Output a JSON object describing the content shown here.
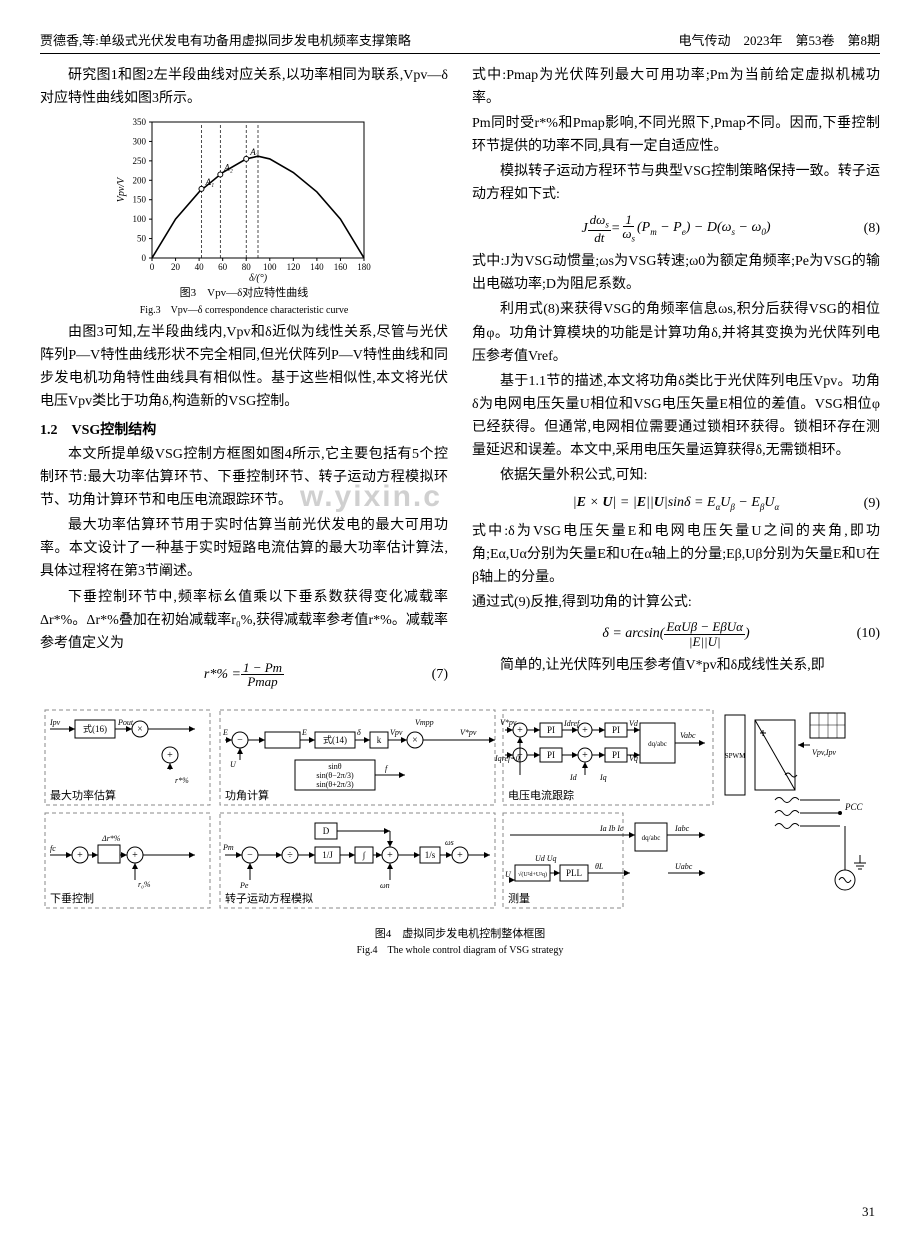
{
  "header": {
    "left": "贾德香,等:单级式光伏发电有功备用虚拟同步发电机频率支撑策略",
    "right": "电气传动　2023年　第53卷　第8期"
  },
  "left_col": {
    "p1": "研究图1和图2左半段曲线对应关系,以功率相同为联系,Vpv—δ对应特性曲线如图3所示。",
    "fig3_cn": "图3　Vpv—δ对应特性曲线",
    "fig3_en": "Fig.3　Vpv—δ correspondence characteristic curve",
    "p2": "由图3可知,左半段曲线内,Vpv和δ近似为线性关系,尽管与光伏阵列P—V特性曲线形状不完全相同,但光伏阵列P—V特性曲线和同步发电机功角特性曲线具有相似性。基于这些相似性,本文将光伏电压Vpv类比于功角δ,构造新的VSG控制。",
    "h1": "1.2　VSG控制结构",
    "p3": "本文所提单级VSG控制方框图如图4所示,它主要包括有5个控制环节:最大功率估算环节、下垂控制环节、转子运动方程模拟环节、功角计算环节和电压电流跟踪环节。",
    "p4": "最大功率估算环节用于实时估算当前光伏发电的最大可用功率。本文设计了一种基于实时短路电流估算的最大功率估计算法,具体过程将在第3节阐述。",
    "p5": "下垂控制环节中,频率标幺值乘以下垂系数获得变化减载率Δr*%。Δr*%叠加在初始减载率r₀%,获得减载率参考值r*%。减载率参考值定义为",
    "eq7_lhs": "r*% = ",
    "eq7_num": "1 − Pm",
    "eq7_den": "Pmap",
    "eq7_label": "(7)"
  },
  "right_col": {
    "p1": "式中:Pmap为光伏阵列最大可用功率;Pm为当前给定虚拟机械功率。",
    "p1b": "Pm同时受r*%和Pmap影响,不同光照下,Pmap不同。因而,下垂控制环节提供的功率不同,具有一定自适应性。",
    "p2": "模拟转子运动方程环节与典型VSG控制策略保持一致。转子运动方程如下式:",
    "eq8": "J (dωs/dt) = (1/ωs)(Pm − Pe) − D(ωs − ω0)",
    "eq8_label": "(8)",
    "p3": "式中:J为VSG动惯量;ωs为VSG转速;ω0为额定角频率;Pe为VSG的输出电磁功率;D为阻尼系数。",
    "p4": "利用式(8)来获得VSG的角频率信息ωs,积分后获得VSG的相位角φ。功角计算模块的功能是计算功角δ,并将其变换为光伏阵列电压参考值Vref。",
    "p5": "基于1.1节的描述,本文将功角δ类比于光伏阵列电压Vpv。功角δ为电网电压矢量U相位和VSG电压矢量E相位的差值。VSG相位φ已经获得。但通常,电网相位需要通过锁相环获得。锁相环存在测量延迟和误差。本文中,采用电压矢量运算获得δ,无需锁相环。",
    "p6": "依据矢量外积公式,可知:",
    "eq9": "|E × U| = |E||U|sinδ = EαUβ − EβUα",
    "eq9_label": "(9)",
    "p7": "式中:δ为VSG电压矢量E和电网电压矢量U之间的夹角,即功角;Eα,Uα分别为矢量E和U在α轴上的分量;Eβ,Uβ分别为矢量E和U在β轴上的分量。",
    "p7b": "通过式(9)反推,得到功角的计算公式:",
    "eq10": "δ = arcsin( (EαUβ − EβUα) / |E||U| )",
    "eq10_num": "EαUβ − EβUα",
    "eq10_den": "|E||U|",
    "eq10_label": "(10)",
    "p8": "简单的,让光伏阵列电压参考值V*pv和δ成线性关系,即"
  },
  "chart": {
    "type": "line",
    "title": "",
    "xlabel": "δ/(°)",
    "ylabel": "Vpv/V",
    "xlim": [
      0,
      180
    ],
    "ylim": [
      0,
      350
    ],
    "xtick_step": 20,
    "ytick_step": 50,
    "line_color": "#000000",
    "grid_color": "#c0c0c0",
    "background_color": "#ffffff",
    "axis_color": "#000000",
    "label_fontsize": 10,
    "tick_fontsize": 9,
    "x_values": [
      0,
      20,
      40,
      60,
      80,
      90,
      100,
      120,
      140,
      160,
      180
    ],
    "y_values": [
      0,
      100,
      170,
      220,
      255,
      262,
      255,
      220,
      170,
      100,
      0
    ],
    "markers": [
      {
        "label": "A₁",
        "x": 42,
        "y": 178
      },
      {
        "label": "A₂",
        "x": 58,
        "y": 215
      },
      {
        "label": "A₃",
        "x": 80,
        "y": 255
      }
    ],
    "vlines_x": [
      42,
      58,
      80,
      90
    ],
    "vline_style": "dashed",
    "vline_color": "#000000"
  },
  "fig4": {
    "caption_cn": "图4　虚拟同步发电机控制整体框图",
    "caption_en": "Fig.4　The whole control diagram of VSG strategy",
    "blocks": {
      "b1": "最大功率估算",
      "b2": "下垂控制",
      "b3": "转子运动方程模拟",
      "b4": "功角计算",
      "b5": "电压电流跟踪",
      "b6": "测量"
    },
    "small_labels": [
      "式(16)",
      "式(14)",
      "PI",
      "dq/abc",
      "PLL",
      "SPWM",
      "1/s",
      "1/J",
      "D",
      "sinθ",
      "sin(θ−2π/3)",
      "sin(θ+2π/3)",
      "√(U²d+U²q)",
      "PCC"
    ],
    "signals": [
      "Ipv",
      "Pout",
      "r*%",
      "fc",
      "Δr*%",
      "r₀%",
      "Pm",
      "Pe",
      "ωn",
      "ωs",
      "E",
      "U",
      "δ",
      "k",
      "Vmpp",
      "Vpv",
      "V*pv",
      "f",
      "Id",
      "Idref",
      "Iqref=0",
      "Iq",
      "Vd",
      "Vq",
      "Vabc",
      "Ud",
      "Uq",
      "θL",
      "Ia",
      "Ib",
      "Ic",
      "Uabc",
      "Iabc"
    ]
  },
  "page_number": "31",
  "watermark": "w.yixin.c"
}
